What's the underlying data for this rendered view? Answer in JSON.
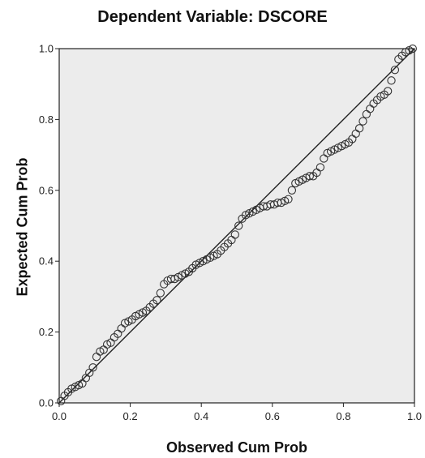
{
  "chart_data": {
    "type": "scatter",
    "title": "Dependent Variable: DSCORE",
    "xlabel": "Observed Cum Prob",
    "ylabel": "Expected Cum Prob",
    "xlim": [
      0,
      1
    ],
    "ylim": [
      0,
      1
    ],
    "xticks": [
      "0.0",
      "0.2",
      "0.4",
      "0.6",
      "0.8",
      "1.0"
    ],
    "yticks": [
      "0.0",
      "0.2",
      "0.4",
      "0.6",
      "0.8",
      "1.0"
    ],
    "grid": false,
    "reference_line": {
      "from": [
        0,
        0
      ],
      "to": [
        1,
        1
      ]
    },
    "points": [
      [
        0.005,
        0.005
      ],
      [
        0.015,
        0.02
      ],
      [
        0.025,
        0.03
      ],
      [
        0.035,
        0.04
      ],
      [
        0.045,
        0.045
      ],
      [
        0.055,
        0.05
      ],
      [
        0.065,
        0.055
      ],
      [
        0.075,
        0.07
      ],
      [
        0.085,
        0.085
      ],
      [
        0.095,
        0.1
      ],
      [
        0.105,
        0.13
      ],
      [
        0.115,
        0.145
      ],
      [
        0.125,
        0.15
      ],
      [
        0.135,
        0.165
      ],
      [
        0.145,
        0.17
      ],
      [
        0.155,
        0.185
      ],
      [
        0.165,
        0.195
      ],
      [
        0.175,
        0.21
      ],
      [
        0.185,
        0.225
      ],
      [
        0.195,
        0.23
      ],
      [
        0.205,
        0.235
      ],
      [
        0.215,
        0.245
      ],
      [
        0.225,
        0.25
      ],
      [
        0.235,
        0.255
      ],
      [
        0.245,
        0.26
      ],
      [
        0.255,
        0.27
      ],
      [
        0.265,
        0.28
      ],
      [
        0.275,
        0.29
      ],
      [
        0.285,
        0.31
      ],
      [
        0.295,
        0.335
      ],
      [
        0.305,
        0.345
      ],
      [
        0.315,
        0.35
      ],
      [
        0.325,
        0.35
      ],
      [
        0.335,
        0.355
      ],
      [
        0.345,
        0.36
      ],
      [
        0.355,
        0.365
      ],
      [
        0.365,
        0.37
      ],
      [
        0.375,
        0.38
      ],
      [
        0.385,
        0.39
      ],
      [
        0.395,
        0.395
      ],
      [
        0.405,
        0.4
      ],
      [
        0.415,
        0.405
      ],
      [
        0.425,
        0.41
      ],
      [
        0.435,
        0.415
      ],
      [
        0.445,
        0.42
      ],
      [
        0.455,
        0.43
      ],
      [
        0.465,
        0.44
      ],
      [
        0.475,
        0.45
      ],
      [
        0.485,
        0.46
      ],
      [
        0.495,
        0.475
      ],
      [
        0.505,
        0.5
      ],
      [
        0.515,
        0.52
      ],
      [
        0.525,
        0.53
      ],
      [
        0.535,
        0.535
      ],
      [
        0.545,
        0.54
      ],
      [
        0.555,
        0.545
      ],
      [
        0.565,
        0.55
      ],
      [
        0.575,
        0.555
      ],
      [
        0.585,
        0.555
      ],
      [
        0.595,
        0.56
      ],
      [
        0.605,
        0.56
      ],
      [
        0.615,
        0.565
      ],
      [
        0.625,
        0.565
      ],
      [
        0.635,
        0.57
      ],
      [
        0.645,
        0.575
      ],
      [
        0.655,
        0.6
      ],
      [
        0.665,
        0.62
      ],
      [
        0.675,
        0.625
      ],
      [
        0.685,
        0.63
      ],
      [
        0.695,
        0.635
      ],
      [
        0.705,
        0.64
      ],
      [
        0.715,
        0.64
      ],
      [
        0.725,
        0.65
      ],
      [
        0.735,
        0.665
      ],
      [
        0.745,
        0.69
      ],
      [
        0.755,
        0.705
      ],
      [
        0.765,
        0.71
      ],
      [
        0.775,
        0.715
      ],
      [
        0.785,
        0.72
      ],
      [
        0.795,
        0.725
      ],
      [
        0.805,
        0.73
      ],
      [
        0.815,
        0.735
      ],
      [
        0.825,
        0.745
      ],
      [
        0.835,
        0.76
      ],
      [
        0.845,
        0.775
      ],
      [
        0.855,
        0.795
      ],
      [
        0.865,
        0.815
      ],
      [
        0.875,
        0.83
      ],
      [
        0.885,
        0.845
      ],
      [
        0.895,
        0.855
      ],
      [
        0.905,
        0.865
      ],
      [
        0.915,
        0.87
      ],
      [
        0.925,
        0.88
      ],
      [
        0.935,
        0.91
      ],
      [
        0.945,
        0.94
      ],
      [
        0.955,
        0.97
      ],
      [
        0.965,
        0.98
      ],
      [
        0.975,
        0.99
      ],
      [
        0.985,
        0.995
      ],
      [
        0.995,
        1.0
      ]
    ],
    "colors": {
      "plot_bg": "#ececec",
      "marker": "#333333",
      "line": "#222222",
      "axis": "#222222"
    }
  }
}
